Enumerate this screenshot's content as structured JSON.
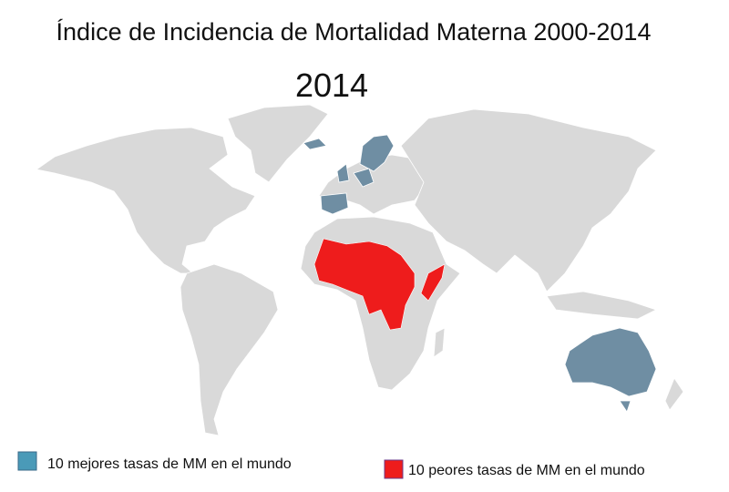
{
  "title": "Índice de Incidencia de Mortalidad Materna 2000-2014",
  "subtitle": "2014",
  "legend": [
    {
      "label": "10 mejores tasas de MM en el mundo"
    },
    {
      "label": "10 peores tasas de MM en el mundo"
    }
  ]
}
